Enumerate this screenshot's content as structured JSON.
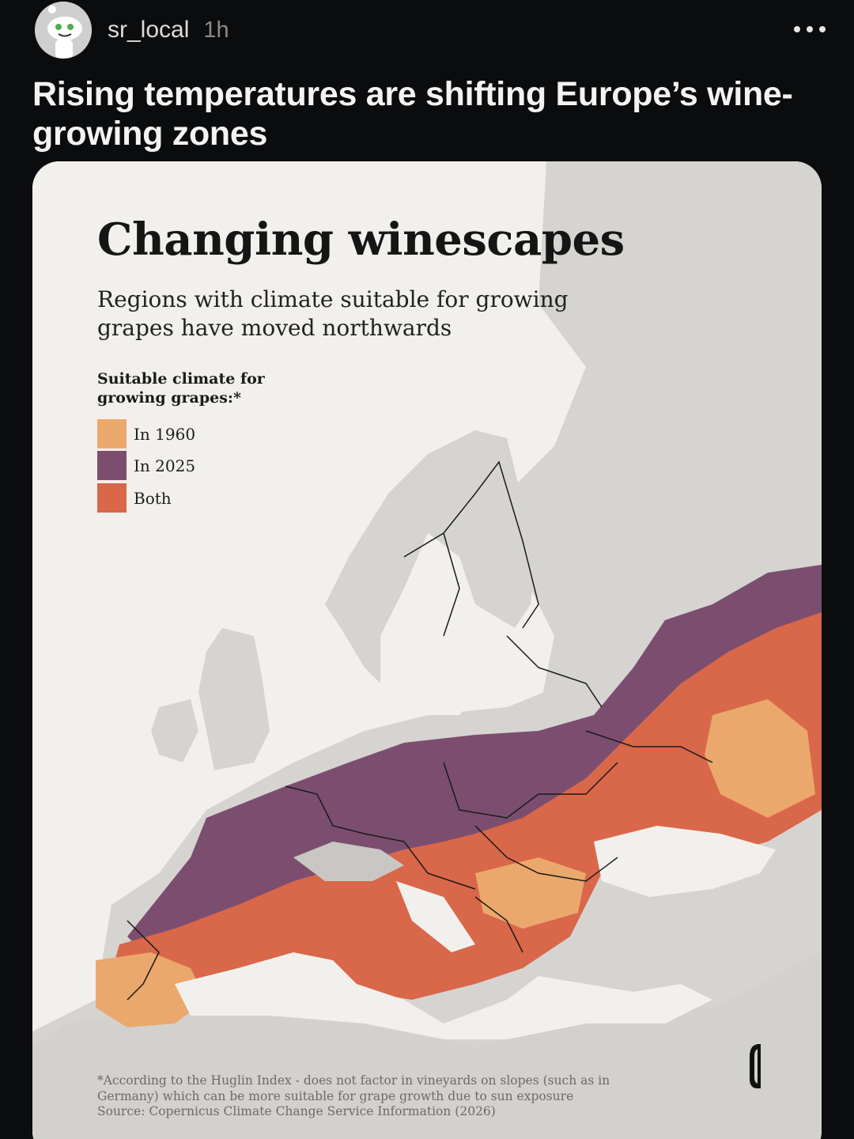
{
  "post": {
    "username": "sr_local",
    "time": "1h",
    "title": "Rising temperatures are shifting Europe’s wine-growing zones"
  },
  "icons": {
    "avatar": "reddit-snoo-avatar-icon",
    "more": "more-options-icon",
    "logo": "publisher-logo-icon"
  },
  "chart": {
    "title": "Changing winescapes",
    "subtitle": "Regions with climate suitable for growing grapes have moved northwards",
    "legend_title": "Suitable climate for growing grapes:*",
    "footnote_1": "*According to the Huglin Index - does not factor in vineyards on slopes (such as in Germany) which can be more suitable for grape growth due to sun exposure",
    "footnote_2": "Source: Copernicus Climate Change Service Information (2026)"
  },
  "chart_data": {
    "type": "map",
    "legend": [
      {
        "label": "In 1960",
        "color": "#eba86c"
      },
      {
        "label": "In 2025",
        "color": "#7b4e6f"
      },
      {
        "label": "Both",
        "color": "#d9674a"
      }
    ],
    "background_color": "#f2f0ec",
    "land_color": "#d8d6d3"
  }
}
